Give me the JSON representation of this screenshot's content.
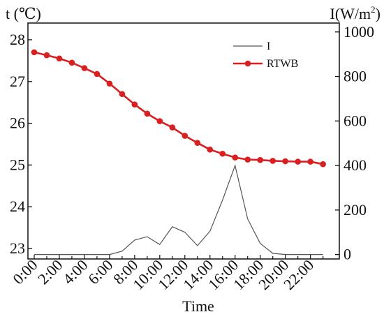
{
  "chart_data": {
    "type": "line",
    "left_axis_label": "t (℃)",
    "right_axis_label": {
      "prefix": "I(W/m",
      "sup": "2",
      "suffix": ")"
    },
    "xlabel": "Time",
    "x_tick_labels": [
      "0:00",
      "2:00",
      "4:00",
      "6:00",
      "8:00",
      "10:00",
      "12:00",
      "14:00",
      "16:00",
      "18:00",
      "20:00",
      "22:00"
    ],
    "x": [
      0,
      1,
      2,
      3,
      4,
      5,
      6,
      7,
      8,
      9,
      10,
      11,
      12,
      13,
      14,
      15,
      16,
      17,
      18,
      19,
      20,
      21,
      22,
      23
    ],
    "left_ylim": [
      22.75,
      28.4
    ],
    "left_yticks": [
      23,
      24,
      25,
      26,
      27,
      28
    ],
    "right_ylim": [
      -20,
      1040
    ],
    "right_yticks": [
      0,
      200,
      400,
      600,
      800,
      1000
    ],
    "legend_position": "top-right",
    "series": [
      {
        "name": "I",
        "axis": "right",
        "color": "#555555",
        "marker": "none",
        "values": [
          0,
          0,
          0,
          0,
          0,
          0,
          0,
          15,
          65,
          80,
          45,
          125,
          100,
          40,
          105,
          245,
          400,
          160,
          50,
          5,
          0,
          0,
          0,
          0
        ]
      },
      {
        "name": "RTWB",
        "axis": "left",
        "color": "#d91f1f",
        "marker": "circle",
        "values": [
          27.7,
          27.63,
          27.55,
          27.45,
          27.32,
          27.18,
          26.95,
          26.7,
          26.45,
          26.23,
          26.05,
          25.9,
          25.7,
          25.53,
          25.37,
          25.27,
          25.18,
          25.13,
          25.12,
          25.1,
          25.09,
          25.08,
          25.08,
          25.02
        ]
      }
    ]
  }
}
